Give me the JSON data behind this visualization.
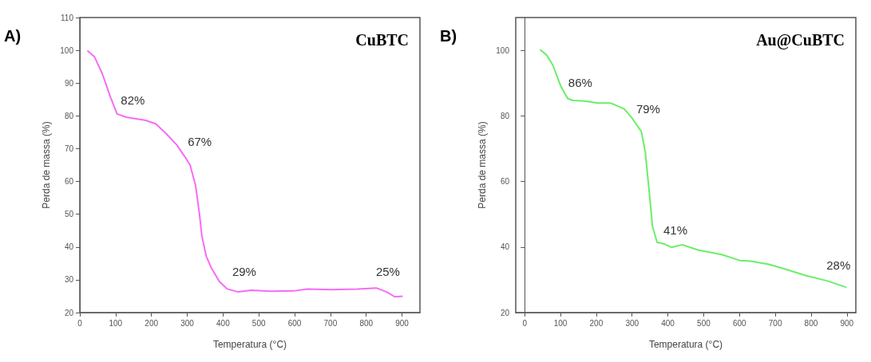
{
  "chart_data": [
    {
      "type": "line",
      "title": "A)",
      "xlabel": "Temperatura (°C)",
      "ylabel": "Perda de massa (%)",
      "xlim": [
        0,
        950
      ],
      "xticks": [
        0,
        100,
        200,
        300,
        400,
        500,
        600,
        700,
        800,
        900
      ],
      "ylim": [
        20,
        110
      ],
      "yticks": [
        20,
        30,
        40,
        50,
        60,
        70,
        80,
        90,
        100,
        110
      ],
      "marker": "none",
      "x": [
        21,
        41,
        63,
        85,
        104,
        130,
        182,
        212,
        241,
        271,
        293,
        308,
        323,
        334,
        341,
        353,
        367,
        390,
        412,
        442,
        479,
        531,
        598,
        635,
        702,
        776,
        828,
        857,
        880,
        902
      ],
      "series": [
        {
          "color": "#f56cf5",
          "values": [
            99.9,
            98,
            92.8,
            85.9,
            80.6,
            79.6,
            78.7,
            77.6,
            74.6,
            71.1,
            67.6,
            65,
            58.9,
            50.2,
            43.3,
            37.2,
            33.7,
            29.4,
            27.2,
            26.3,
            26.8,
            26.5,
            26.6,
            27.2,
            27,
            27.2,
            27.5,
            26.3,
            24.8,
            25
          ]
        }
      ],
      "annotations": [
        "CuBTC",
        "82%",
        "67%",
        "29%",
        "25%"
      ]
    },
    {
      "type": "line",
      "title": "B)",
      "xlabel": "Temperatura (°C)",
      "ylabel": "Perda de massa (%)",
      "xlim": [
        -25,
        925
      ],
      "xticks": [
        0,
        100,
        200,
        300,
        400,
        500,
        600,
        700,
        800,
        900
      ],
      "ylim": [
        20,
        110
      ],
      "yticks": [
        20,
        40,
        60,
        80,
        100
      ],
      "marker": "none",
      "x": [
        43,
        61,
        79,
        101,
        120,
        135,
        168,
        204,
        241,
        278,
        300,
        326,
        337,
        348,
        357,
        370,
        388,
        410,
        440,
        484,
        550,
        601,
        631,
        682,
        726,
        785,
        844,
        899
      ],
      "series": [
        {
          "color": "#6aee6a",
          "values": [
            100.2,
            98.6,
            95.4,
            89,
            85.3,
            84.7,
            84.5,
            83.9,
            83.9,
            82.1,
            79.3,
            75.2,
            68.8,
            56.7,
            46.2,
            41.4,
            41,
            39.9,
            40.7,
            39.1,
            37.7,
            35.9,
            35.7,
            34.7,
            33.3,
            31.3,
            29.7,
            27.7
          ]
        }
      ],
      "annotations": [
        "Au@CuBTC",
        "86%",
        "79%",
        "41%",
        "28%"
      ]
    }
  ]
}
